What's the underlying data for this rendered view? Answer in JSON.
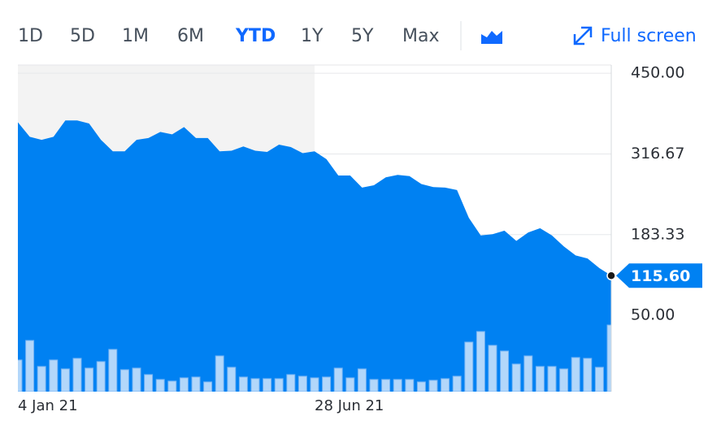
{
  "toolbar": {
    "ranges": [
      "1D",
      "5D",
      "1M",
      "6M",
      "YTD",
      "1Y",
      "5Y",
      "Max"
    ],
    "selected": "YTD",
    "fullscreen": "Full screen"
  },
  "chart_data": {
    "type": "area",
    "categories": [
      "4 Jan 21",
      null,
      null,
      null,
      null,
      null,
      null,
      null,
      null,
      null,
      null,
      null,
      null,
      null,
      null,
      null,
      null,
      null,
      null,
      null,
      null,
      null,
      null,
      null,
      null,
      "28 Jun 21",
      null,
      null,
      null,
      null,
      null,
      null,
      null,
      null,
      null,
      null,
      null,
      null,
      null,
      null,
      null,
      null,
      null,
      null,
      null,
      null,
      null,
      null,
      null,
      null,
      null
    ],
    "series": [
      {
        "color": "#0081f2",
        "values": [
          369,
          345,
          340,
          345,
          372,
          372,
          367,
          340,
          321,
          321,
          340,
          343,
          353,
          349,
          361,
          343,
          343,
          321,
          322,
          329,
          322,
          320,
          332,
          328,
          318,
          321,
          308,
          281,
          281,
          261,
          265,
          278,
          282,
          280,
          267,
          262,
          261,
          257,
          211,
          182,
          184,
          190,
          173,
          187,
          194,
          182,
          164,
          149,
          144,
          128,
          115.6
        ],
        "value_labels": [
          null,
          null,
          null,
          null,
          null,
          null,
          null,
          null,
          null,
          null,
          null,
          null,
          null,
          null,
          null,
          null,
          null,
          null,
          null,
          null,
          null,
          null,
          null,
          null,
          null,
          null,
          null,
          null,
          null,
          null,
          null,
          null,
          null,
          null,
          null,
          null,
          null,
          null,
          null,
          null,
          null,
          null,
          null,
          null,
          null,
          null,
          null,
          null,
          null,
          null,
          "115.60"
        ]
      },
      {
        "type": "bar",
        "color": "#b3d7fa",
        "axis": "volume",
        "values": [
          39,
          63,
          31,
          39,
          28,
          41,
          29,
          37,
          52,
          27,
          29,
          21,
          15,
          13,
          17,
          18,
          12,
          44,
          30,
          18,
          16,
          16,
          16,
          21,
          19,
          17,
          18,
          29,
          17,
          28,
          15,
          15,
          15,
          15,
          12,
          14,
          16,
          19,
          61,
          74,
          57,
          50,
          34,
          44,
          31,
          31,
          28,
          42,
          41,
          30,
          82
        ]
      }
    ],
    "ylim": [
      -76,
      463.6
    ],
    "volume_lim": [
      0,
      100
    ],
    "yticks": [
      {
        "value": 450,
        "label": "450.00"
      },
      {
        "value": 316.67,
        "label": "316.67"
      },
      {
        "value": 183.33,
        "label": "183.33"
      },
      {
        "value": 50,
        "label": "50.00"
      }
    ],
    "grid": true
  }
}
